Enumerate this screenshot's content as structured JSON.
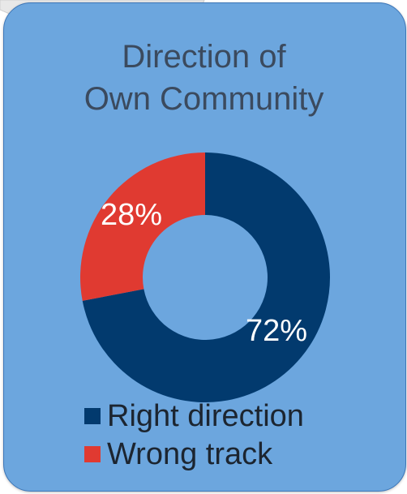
{
  "colors": {
    "card_background": "#6ca6de",
    "card_border": "#3c76b8",
    "tab_background": "#e8e8e8",
    "right_direction": "#023a6e",
    "wrong_track": "#e03a31",
    "label_text": "#ffffff"
  },
  "chart_data": {
    "type": "pie",
    "title_lines": [
      "Direction of",
      "Own Community"
    ],
    "slices": [
      {
        "name": "Right direction",
        "value": 72,
        "label": "72%",
        "color": "#023a6e"
      },
      {
        "name": "Wrong track",
        "value": 28,
        "label": "28%",
        "color": "#e03a31"
      }
    ],
    "hole": "donut",
    "legend_position": "bottom-left"
  }
}
